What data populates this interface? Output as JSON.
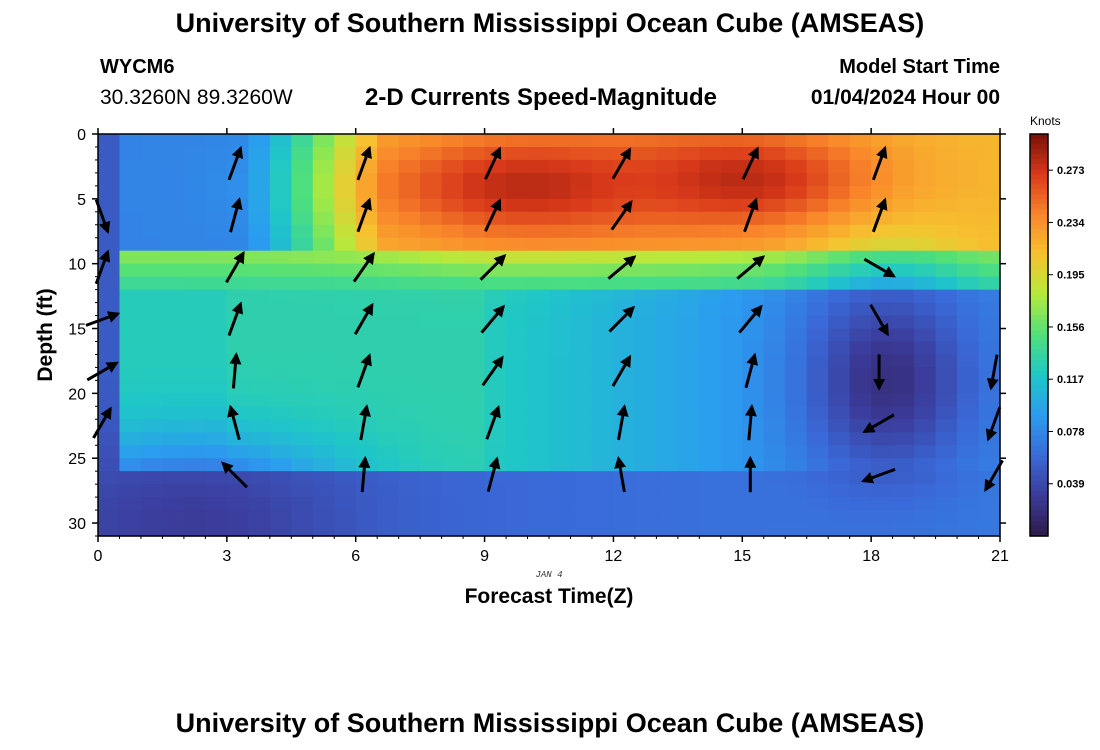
{
  "header": {
    "title": "University of Southern Mississippi Ocean Cube (AMSEAS)",
    "station_id": "WYCM6",
    "coordinates": "30.3260N  89.3260W",
    "subtitle": "2-D Currents Speed-Magnitude",
    "model_start_label": "Model Start Time",
    "model_start_value": "01/04/2024 Hour 00"
  },
  "footer": {
    "title": "University of Southern Mississippi Ocean Cube (AMSEAS)"
  },
  "chart_data": {
    "type": "heatmap",
    "title": "2-D Currents Speed-Magnitude",
    "xlabel": "Forecast Time(Z)",
    "ylabel": "Depth (ft)",
    "date_label": "JAN 4",
    "xlim": [
      0,
      21
    ],
    "ylim": [
      31,
      0
    ],
    "xticks": [
      0,
      3,
      6,
      9,
      12,
      15,
      18,
      21
    ],
    "yticks": [
      0,
      5,
      10,
      15,
      20,
      25,
      30
    ],
    "colorbar": {
      "title": "Knots",
      "ticks": [
        0.273,
        0.234,
        0.195,
        0.156,
        0.117,
        0.078,
        0.039
      ],
      "range": [
        0.0,
        0.3
      ],
      "colors": [
        "#2e1a4a",
        "#3b3b9a",
        "#3a6ad9",
        "#2b9cf0",
        "#1fc7c7",
        "#4fe07a",
        "#b4ea3c",
        "#f7c230",
        "#f9852a",
        "#d9391a",
        "#7a1008"
      ]
    },
    "speed_features": [
      {
        "name": "surface-max-1",
        "x": 10,
        "depth": 4,
        "speed": 0.28,
        "sx": 2.6,
        "sd": 3
      },
      {
        "name": "surface-max-2",
        "x": 15,
        "depth": 3.5,
        "speed": 0.28,
        "sx": 2.2,
        "sd": 2.8
      },
      {
        "name": "deep-min",
        "x": 18.4,
        "depth": 19,
        "speed": 0.02,
        "sx": 1.3,
        "sd": 5
      },
      {
        "name": "bottom-min",
        "x": 2.2,
        "depth": 30,
        "speed": 0.03,
        "sx": 2.5,
        "sd": 4
      }
    ],
    "vectors": {
      "times": [
        0,
        3,
        6,
        9,
        12,
        15,
        18,
        21
      ],
      "depths": [
        2,
        6,
        10,
        14,
        18,
        22,
        26
      ],
      "directions_deg": [
        [
          null,
          160,
          20,
          70,
          60,
          30,
          null
        ],
        [
          20,
          15,
          30,
          20,
          5,
          -15,
          -45
        ],
        [
          20,
          20,
          35,
          30,
          20,
          10,
          5
        ],
        [
          25,
          25,
          45,
          40,
          35,
          20,
          15
        ],
        [
          30,
          35,
          50,
          45,
          30,
          10,
          -10
        ],
        [
          25,
          20,
          50,
          40,
          15,
          5,
          0
        ],
        [
          20,
          20,
          120,
          150,
          180,
          240,
          250
        ],
        [
          null,
          null,
          null,
          null,
          190,
          200,
          210
        ]
      ]
    }
  }
}
